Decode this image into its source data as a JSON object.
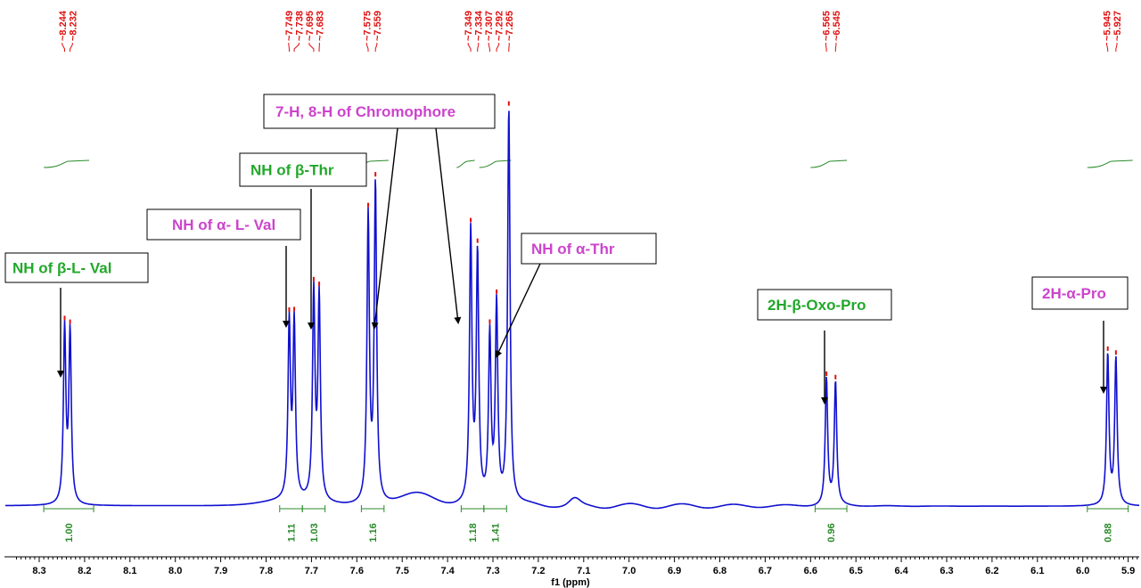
{
  "chart_data": {
    "type": "line",
    "title": "",
    "xlabel": "f1 (ppm)",
    "ylabel": "",
    "xlim": [
      8.35,
      5.9
    ],
    "x_reversed": true,
    "x_ticks": [
      "8.3",
      "8.2",
      "8.1",
      "8.0",
      "7.9",
      "7.8",
      "7.7",
      "7.6",
      "7.5",
      "7.4",
      "7.3",
      "7.2",
      "7.1",
      "7.0",
      "6.9",
      "6.8",
      "6.7",
      "6.6",
      "6.5",
      "6.4",
      "6.3",
      "6.2",
      "6.1",
      "6.0",
      "5.9"
    ],
    "peak_picks": [
      [
        "8.244",
        "8.232"
      ],
      [
        "7.749",
        "7.738",
        "7.695",
        "7.683"
      ],
      [
        "7.575",
        "7.559"
      ],
      [
        "7.349",
        "7.334",
        "7.307",
        "7.292",
        "7.265"
      ],
      [
        "6.565",
        "6.545"
      ],
      [
        "5.945",
        "5.927"
      ]
    ],
    "peaks": [
      {
        "ppm": 8.244,
        "h": 0.44
      },
      {
        "ppm": 8.232,
        "h": 0.43
      },
      {
        "ppm": 7.749,
        "h": 0.44
      },
      {
        "ppm": 7.738,
        "h": 0.44
      },
      {
        "ppm": 7.695,
        "h": 0.52
      },
      {
        "ppm": 7.683,
        "h": 0.51
      },
      {
        "ppm": 7.575,
        "h": 0.72
      },
      {
        "ppm": 7.559,
        "h": 0.8
      },
      {
        "ppm": 7.349,
        "h": 0.68
      },
      {
        "ppm": 7.334,
        "h": 0.62
      },
      {
        "ppm": 7.307,
        "h": 0.42
      },
      {
        "ppm": 7.292,
        "h": 0.5
      },
      {
        "ppm": 7.265,
        "h": 1.0
      },
      {
        "ppm": 6.565,
        "h": 0.32
      },
      {
        "ppm": 6.545,
        "h": 0.31
      },
      {
        "ppm": 5.945,
        "h": 0.38
      },
      {
        "ppm": 5.927,
        "h": 0.37
      }
    ],
    "integrals": [
      {
        "from": 8.29,
        "to": 8.18,
        "value": "1.00"
      },
      {
        "from": 7.77,
        "to": 7.72,
        "value": "1.11"
      },
      {
        "from": 7.72,
        "to": 7.67,
        "value": "1.03"
      },
      {
        "from": 7.59,
        "to": 7.54,
        "value": "1.16"
      },
      {
        "from": 7.37,
        "to": 7.32,
        "value": "1.18"
      },
      {
        "from": 7.32,
        "to": 7.27,
        "value": "1.41"
      },
      {
        "from": 6.59,
        "to": 6.52,
        "value": "0.96"
      },
      {
        "from": 5.99,
        "to": 5.9,
        "value": "0.88"
      }
    ],
    "annotations": [
      {
        "text": "NH of β-L- Val",
        "color": "#22a82a",
        "arrow_ppm": 8.25
      },
      {
        "text": "NH of α- L- Val",
        "color": "#cc44cc",
        "arrow_ppm": 7.75
      },
      {
        "text": "NH of β-Thr",
        "color": "#22a82a",
        "arrow_ppm": 7.71
      },
      {
        "text": "7-H, 8-H of Chromophore",
        "color": "#cc44cc",
        "arrow_ppm": [
          7.565,
          7.385
        ]
      },
      {
        "text": "NH of α-Thr",
        "color": "#cc44cc",
        "arrow_ppm": 7.3
      },
      {
        "text": "2H-β-Oxo-Pro",
        "color": "#22a82a",
        "arrow_ppm": 6.57
      },
      {
        "text": "2H-α-Pro",
        "color": "#cc44cc",
        "arrow_ppm": 5.955
      }
    ],
    "colors": {
      "spectrum": "#1010d0",
      "peak_labels": "#e01010",
      "integrals": "#2a8a2a",
      "green_label": "#22a82a",
      "pink_label": "#cc44cc"
    }
  }
}
